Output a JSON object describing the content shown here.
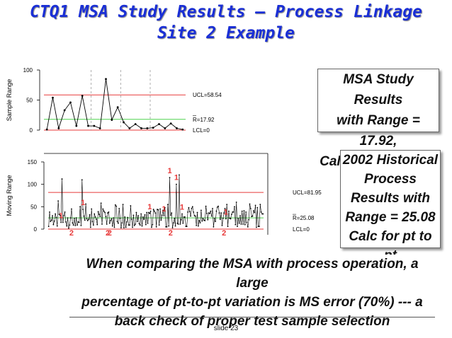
{
  "slide": {
    "title_line1": "CTQ1 MSA Study Results – Process Linkage",
    "title_line2": "Site 2 Example",
    "callout_msa": [
      "MSA Study Results",
      "with Range = 17.92,",
      "Calc for Subgroup"
    ],
    "callout_hist": [
      "2002 Historical",
      "Process",
      "Results with",
      "Range = 25.08",
      "Calc for pt to pt"
    ],
    "conclusion": [
      "When comparing the MSA with process operation, a large",
      "percentage of pt-to-pt  variation is MS error (70%) --- a",
      "back check of proper test sample selection"
    ],
    "footer": "slide  23"
  },
  "chart_data": [
    {
      "type": "line",
      "title": "",
      "ylabel": "Sample Range",
      "xlabel": "",
      "ylim": [
        0,
        100
      ],
      "yticks": [
        0,
        50,
        100
      ],
      "grid": false,
      "x": [
        1,
        2,
        3,
        4,
        5,
        6,
        7,
        8,
        9,
        10,
        11,
        12,
        13,
        14,
        15,
        16,
        17,
        18,
        19,
        20,
        21,
        22,
        23,
        24
      ],
      "values": [
        1,
        54,
        3,
        33,
        46,
        7,
        57,
        7,
        7,
        3,
        85,
        17,
        38,
        13,
        3,
        10,
        3,
        3,
        4,
        10,
        3,
        11,
        3,
        1
      ],
      "ucl": 58.54,
      "center": 17.92,
      "lcl": 0,
      "ucl_label": "UCL=58.54",
      "center_label": "R=17.92",
      "lcl_label": "LCL=0",
      "colors": {
        "ucl": "#e83a3a",
        "center": "#4fd24f",
        "series": "#000000",
        "dividers": "#9a9a9a"
      }
    },
    {
      "type": "line",
      "title": "",
      "ylabel": "Moving Range",
      "xlabel": "",
      "ylim": [
        0,
        150
      ],
      "yticks": [
        0,
        50,
        100,
        150
      ],
      "grid": false,
      "ucl": 81.95,
      "center": 25.08,
      "lcl": 0,
      "ucl_label": "UCL=81.95",
      "center_label": "R=25.08",
      "lcl_label": "LCL=0",
      "point_count": 226,
      "values": [
        6,
        38,
        17,
        20,
        30,
        10,
        18,
        34,
        26,
        7,
        63,
        33,
        31,
        15,
        112,
        15,
        30,
        38,
        16,
        7,
        25,
        2,
        9,
        25,
        45,
        14,
        9,
        24,
        8,
        25,
        9,
        16,
        15,
        50,
        8,
        110,
        44,
        29,
        20,
        56,
        23,
        19,
        22,
        32,
        4,
        45,
        17,
        9,
        34,
        27,
        22,
        10,
        39,
        33,
        28,
        58,
        11,
        45,
        40,
        37,
        28,
        11,
        36,
        38,
        13,
        19,
        23,
        7,
        25,
        4,
        54,
        51,
        17,
        13,
        46,
        24,
        3,
        14,
        55,
        3,
        27,
        4,
        16,
        26,
        9,
        9,
        52,
        22,
        4,
        31,
        8,
        11,
        37,
        17,
        30,
        12,
        9,
        34,
        7,
        27,
        22,
        32,
        10,
        37,
        13,
        37,
        35,
        40,
        4,
        10,
        44,
        40,
        36,
        5,
        44,
        43,
        9,
        45,
        20,
        31,
        42,
        30,
        48,
        5,
        5,
        55,
        7,
        115,
        31,
        36,
        3,
        14,
        24,
        7,
        100,
        13,
        11,
        121,
        11,
        21,
        34,
        13,
        27,
        27,
        6,
        6,
        38,
        48,
        39,
        29,
        46,
        50,
        38,
        30,
        29,
        8,
        37,
        7,
        19,
        14,
        42,
        18,
        24,
        20,
        19,
        51,
        35,
        21,
        36,
        35,
        40,
        29,
        46,
        5,
        24,
        17,
        40,
        49,
        51,
        36,
        22,
        36,
        8,
        24,
        36,
        46,
        23,
        55,
        6,
        40,
        24,
        23,
        33,
        38,
        38,
        50,
        10,
        60,
        6,
        24,
        13,
        30,
        11,
        40,
        11,
        41,
        10,
        38,
        15,
        5,
        21,
        56,
        46,
        28,
        29,
        41,
        37,
        53,
        4,
        48,
        6,
        6,
        55,
        38,
        34,
        34
      ],
      "annotations": [
        {
          "x": 13,
          "text": "1",
          "pos": "top"
        },
        {
          "x": 36,
          "text": "1",
          "pos": "top"
        },
        {
          "x": 106,
          "text": "1",
          "pos": "top"
        },
        {
          "x": 127,
          "text": "1",
          "pos": "top"
        },
        {
          "x": 140,
          "text": "1",
          "pos": "top"
        },
        {
          "x": 121,
          "text": "1",
          "pos": "top"
        },
        {
          "x": 134,
          "text": "1",
          "pos": "top"
        },
        {
          "x": 186,
          "text": "1",
          "pos": "top"
        },
        {
          "x": 24,
          "text": "2",
          "pos": "bottom"
        },
        {
          "x": 62,
          "text": "2",
          "pos": "bottom"
        },
        {
          "x": 64,
          "text": "2",
          "pos": "bottom"
        },
        {
          "x": 128,
          "text": "2",
          "pos": "bottom"
        },
        {
          "x": 184,
          "text": "2",
          "pos": "bottom"
        }
      ],
      "colors": {
        "ucl": "#e83a3a",
        "center": "#4fd24f",
        "series": "#000000",
        "annot": "#e83a3a"
      }
    }
  ]
}
